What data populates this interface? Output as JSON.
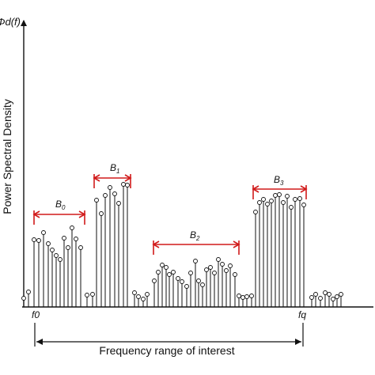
{
  "y_axis": {
    "label": "Power Spectral Density",
    "symbol": "Φd(f)"
  },
  "x_axis": {
    "start_label": "f0",
    "end_label": "fq"
  },
  "range_caption": "Frequency range of interest",
  "bands": [
    {
      "name": "B0",
      "main": "B",
      "sub": "0"
    },
    {
      "name": "B1",
      "main": "B",
      "sub": "1"
    },
    {
      "name": "B2",
      "main": "B",
      "sub": "2"
    },
    {
      "name": "B3",
      "main": "B",
      "sub": "3"
    }
  ],
  "colors": {
    "bracket": "#d11a1a",
    "stem": "#111111",
    "axis": "#111111"
  }
}
